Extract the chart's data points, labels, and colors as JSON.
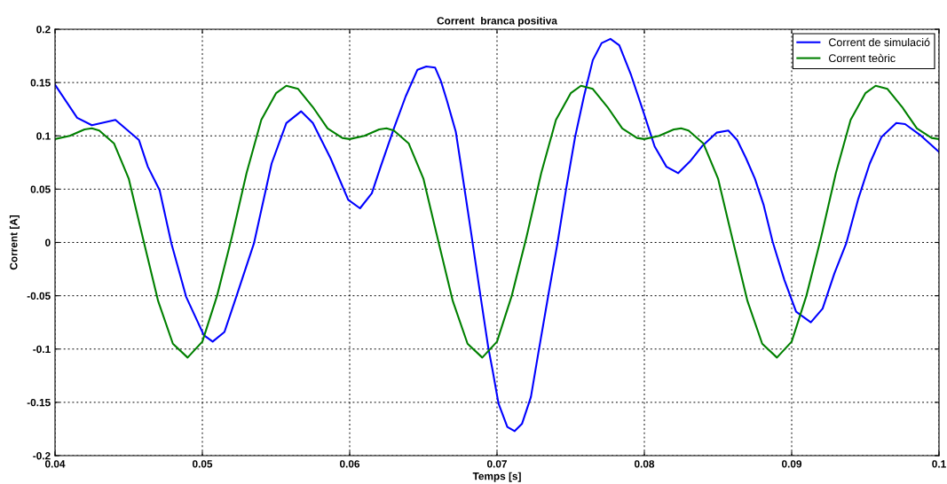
{
  "chart_data": {
    "type": "line",
    "title": "Corrent  branca positiva",
    "xlabel": "Temps [s]",
    "ylabel": "Corrent [A]",
    "xlim": [
      0.04,
      0.1
    ],
    "xticks": [
      0.04,
      0.05,
      0.06,
      0.07,
      0.08,
      0.09,
      0.1
    ],
    "ylim": [
      -0.2,
      0.2
    ],
    "yticks": [
      -0.2,
      -0.15,
      -0.1,
      -0.05,
      0,
      0.05,
      0.1,
      0.15,
      0.2
    ],
    "grid": true,
    "legend": "top right",
    "marker": "none",
    "line_style": "solid",
    "series": [
      {
        "name": "Corrent de simulació",
        "color": "#0000ff",
        "x": [
          0.04,
          0.0415,
          0.0425,
          0.0441,
          0.0457,
          0.0463,
          0.0471,
          0.0479,
          0.0489,
          0.0501,
          0.0507,
          0.0515,
          0.0523,
          0.0535,
          0.0547,
          0.0557,
          0.0567,
          0.0575,
          0.0587,
          0.0599,
          0.0607,
          0.0615,
          0.0621,
          0.063,
          0.0638,
          0.0646,
          0.0652,
          0.0658,
          0.0662,
          0.0666,
          0.0672,
          0.0676,
          0.0682,
          0.0688,
          0.0694,
          0.0697,
          0.0701,
          0.0707,
          0.0712,
          0.0717,
          0.0723,
          0.0728,
          0.0735,
          0.0741,
          0.0747,
          0.0753,
          0.0759,
          0.0765,
          0.0771,
          0.0777,
          0.0783,
          0.0791,
          0.0799,
          0.0807,
          0.0815,
          0.0823,
          0.0831,
          0.0839,
          0.0849,
          0.0857,
          0.0863,
          0.0869,
          0.0875,
          0.0881,
          0.0887,
          0.0895,
          0.0903,
          0.0913,
          0.0921,
          0.0929,
          0.0937,
          0.0945,
          0.0953,
          0.0961,
          0.0971,
          0.0977,
          0.0987,
          0.1
        ],
        "values": [
          0.148,
          0.117,
          0.11,
          0.115,
          0.096,
          0.071,
          0.049,
          -0.001,
          -0.051,
          -0.087,
          -0.093,
          -0.084,
          -0.051,
          -0.001,
          0.074,
          0.112,
          0.123,
          0.112,
          0.079,
          0.04,
          0.032,
          0.046,
          0.071,
          0.107,
          0.137,
          0.162,
          0.165,
          0.164,
          0.151,
          0.133,
          0.104,
          0.068,
          0.013,
          -0.043,
          -0.098,
          -0.12,
          -0.151,
          -0.173,
          -0.177,
          -0.17,
          -0.145,
          -0.104,
          -0.048,
          -0.001,
          0.051,
          0.099,
          0.137,
          0.171,
          0.187,
          0.191,
          0.185,
          0.157,
          0.124,
          0.09,
          0.071,
          0.065,
          0.076,
          0.09,
          0.103,
          0.105,
          0.096,
          0.079,
          0.06,
          0.035,
          0.001,
          -0.035,
          -0.065,
          -0.075,
          -0.062,
          -0.029,
          -0.001,
          0.04,
          0.074,
          0.099,
          0.112,
          0.111,
          0.101,
          0.085
        ]
      },
      {
        "name": "Corrent teòric",
        "color": "#008000",
        "x": [
          0.04,
          0.041,
          0.042,
          0.0425,
          0.043,
          0.044,
          0.045,
          0.046,
          0.047,
          0.048,
          0.049,
          0.05,
          0.051,
          0.052,
          0.053,
          0.054,
          0.055,
          0.0557,
          0.0565,
          0.0575,
          0.0585,
          0.0595,
          0.06,
          0.061,
          0.062,
          0.0625,
          0.063,
          0.064,
          0.065,
          0.066,
          0.067,
          0.068,
          0.069,
          0.07,
          0.071,
          0.072,
          0.073,
          0.074,
          0.075,
          0.0757,
          0.0765,
          0.0775,
          0.0785,
          0.0795,
          0.08,
          0.081,
          0.082,
          0.0825,
          0.083,
          0.084,
          0.085,
          0.086,
          0.087,
          0.088,
          0.089,
          0.09,
          0.091,
          0.092,
          0.093,
          0.094,
          0.095,
          0.0957,
          0.0965,
          0.0975,
          0.0985,
          0.0995,
          0.1
        ],
        "values": [
          0.097,
          0.1,
          0.106,
          0.107,
          0.105,
          0.093,
          0.06,
          0.002,
          -0.055,
          -0.095,
          -0.108,
          -0.093,
          -0.05,
          0.005,
          0.065,
          0.115,
          0.14,
          0.147,
          0.144,
          0.127,
          0.107,
          0.098,
          0.097,
          0.1,
          0.106,
          0.107,
          0.105,
          0.093,
          0.06,
          0.002,
          -0.055,
          -0.095,
          -0.108,
          -0.093,
          -0.05,
          0.005,
          0.065,
          0.115,
          0.14,
          0.147,
          0.144,
          0.127,
          0.107,
          0.098,
          0.097,
          0.1,
          0.106,
          0.107,
          0.105,
          0.093,
          0.06,
          0.002,
          -0.055,
          -0.095,
          -0.108,
          -0.093,
          -0.05,
          0.005,
          0.065,
          0.115,
          0.14,
          0.147,
          0.144,
          0.127,
          0.107,
          0.098,
          0.097
        ]
      }
    ]
  }
}
